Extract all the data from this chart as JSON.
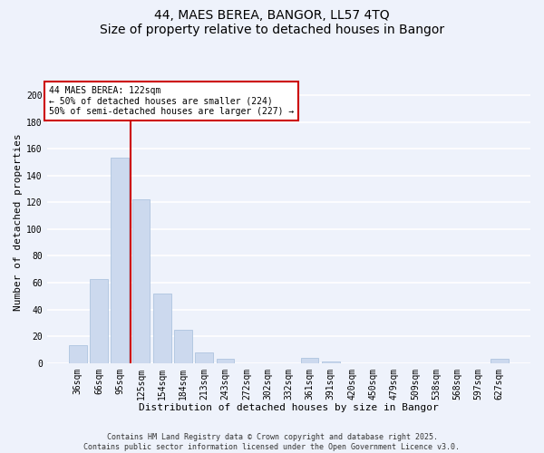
{
  "title": "44, MAES BEREA, BANGOR, LL57 4TQ",
  "subtitle": "Size of property relative to detached houses in Bangor",
  "xlabel": "Distribution of detached houses by size in Bangor",
  "ylabel": "Number of detached properties",
  "categories": [
    "36sqm",
    "66sqm",
    "95sqm",
    "125sqm",
    "154sqm",
    "184sqm",
    "213sqm",
    "243sqm",
    "272sqm",
    "302sqm",
    "332sqm",
    "361sqm",
    "391sqm",
    "420sqm",
    "450sqm",
    "479sqm",
    "509sqm",
    "538sqm",
    "568sqm",
    "597sqm",
    "627sqm"
  ],
  "values": [
    13,
    63,
    153,
    122,
    52,
    25,
    8,
    3,
    0,
    0,
    0,
    4,
    1,
    0,
    0,
    0,
    0,
    0,
    0,
    0,
    3
  ],
  "bar_color": "#ccd9ee",
  "bar_edge_color": "#aec4df",
  "vline_color": "#cc0000",
  "annotation_text": "44 MAES BEREA: 122sqm\n← 50% of detached houses are smaller (224)\n50% of semi-detached houses are larger (227) →",
  "annotation_box_facecolor": "#ffffff",
  "annotation_box_edgecolor": "#cc0000",
  "ylim": [
    0,
    210
  ],
  "yticks": [
    0,
    20,
    40,
    60,
    80,
    100,
    120,
    140,
    160,
    180,
    200
  ],
  "bg_color": "#eef2fb",
  "grid_color": "#ffffff",
  "title_fontsize": 10,
  "axis_label_fontsize": 8,
  "tick_fontsize": 7,
  "annotation_fontsize": 7,
  "footer_fontsize": 6,
  "footer_line1": "Contains HM Land Registry data © Crown copyright and database right 2025.",
  "footer_line2": "Contains public sector information licensed under the Open Government Licence v3.0."
}
